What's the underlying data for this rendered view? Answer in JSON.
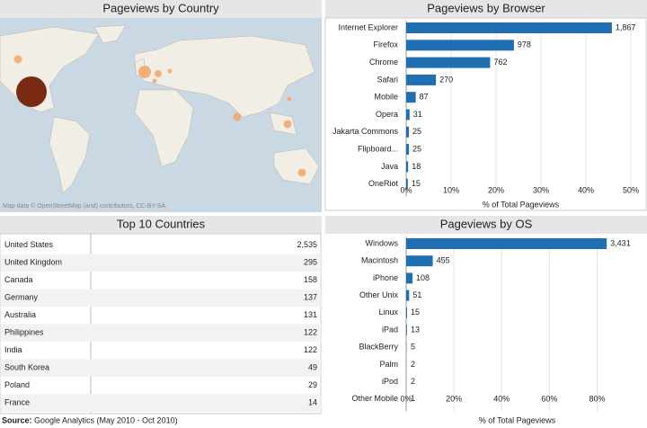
{
  "chart_data": [
    {
      "type": "bubble-map",
      "title": "Pageviews by Country",
      "attribution": "Map data © OpenStreetMap (and) contributors, CC-BY-SA."
    },
    {
      "type": "hbar",
      "title": "Pageviews by Browser",
      "color": "#1f6fb2",
      "categories": [
        "Internet Explorer",
        "Firefox",
        "Chrome",
        "Safari",
        "Mobile",
        "Opera",
        "Jakarta Commons",
        "Flipboard...",
        "Java",
        "OneRiot"
      ],
      "values": [
        45.78,
        23.98,
        18.69,
        6.62,
        2.13,
        0.76,
        0.61,
        0.61,
        0.44,
        0.37
      ],
      "counts": [
        "1,867",
        "978",
        "762",
        "270",
        "87",
        "31",
        "25",
        "25",
        "18",
        "15"
      ],
      "xlabel": "% of Total Pageviews",
      "xlim": [
        0,
        51
      ],
      "xticks": [
        {
          "value": 0,
          "label": "0%"
        },
        {
          "value": 10,
          "label": "10%"
        },
        {
          "value": 20,
          "label": "20%"
        },
        {
          "value": 30,
          "label": "30%"
        },
        {
          "value": 40,
          "label": "40%"
        },
        {
          "value": 50,
          "label": "50%"
        }
      ],
      "grid": true
    },
    {
      "type": "hbar",
      "title": "Pageviews by OS",
      "color": "#1f6fb2",
      "categories": [
        "Windows",
        "Macintosh",
        "iPhone",
        "Other Unix",
        "Linux",
        "iPad",
        "BlackBerry",
        "Palm",
        "iPod",
        "Other Mobile"
      ],
      "values": [
        84.03,
        11.14,
        2.65,
        1.25,
        0.37,
        0.32,
        0.12,
        0.05,
        0.05,
        0.02
      ],
      "counts": [
        "3,431",
        "455",
        "108",
        "51",
        "15",
        "13",
        "5",
        "2",
        "2",
        "1"
      ],
      "xlabel": "% of Total Pageviews",
      "xlim": [
        0,
        93
      ],
      "xticks": [
        {
          "value": 0,
          "label": "0%"
        },
        {
          "value": 20,
          "label": "20%"
        },
        {
          "value": 40,
          "label": "40%"
        },
        {
          "value": 60,
          "label": "60%"
        },
        {
          "value": 80,
          "label": "80%"
        }
      ],
      "grid": true
    }
  ],
  "table": {
    "title": "Top 10 Countries",
    "rows": [
      [
        "United States",
        "2,535"
      ],
      [
        "United Kingdom",
        "295"
      ],
      [
        "Canada",
        "158"
      ],
      [
        "Germany",
        "137"
      ],
      [
        "Australia",
        "131"
      ],
      [
        "Philippines",
        "122"
      ],
      [
        "India",
        "122"
      ],
      [
        "South Korea",
        "49"
      ],
      [
        "Poland",
        "29"
      ],
      [
        "France",
        "14"
      ]
    ]
  },
  "source": {
    "label": "Source:",
    "text": "Google Analytics (May 2010 - Oct 2010)"
  }
}
